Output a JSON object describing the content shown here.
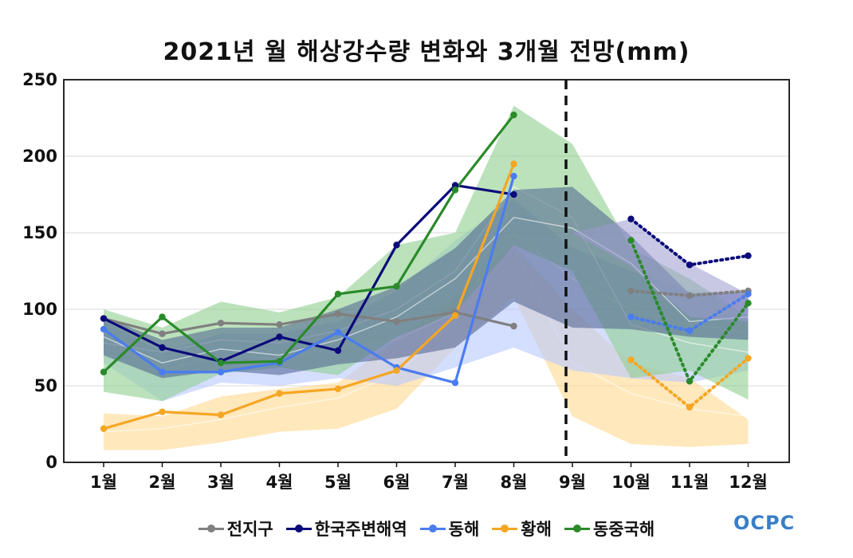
{
  "chart_data": {
    "type": "line",
    "title": "2021년 월 해상강수량 변화와 3개월 전망(mm)",
    "xlabel": "",
    "ylabel": "",
    "categories": [
      "1월",
      "2월",
      "3월",
      "4월",
      "5월",
      "6월",
      "7월",
      "8월",
      "9월",
      "10월",
      "11월",
      "12월"
    ],
    "ylim": [
      0,
      250
    ],
    "yticks": [
      0,
      50,
      100,
      150,
      200,
      250
    ],
    "grid": true,
    "legend_position": "bottom",
    "divider_after_category": "9월",
    "series": [
      {
        "name": "전지구",
        "color": "#808080",
        "observed": [
          94,
          84,
          91,
          90,
          97,
          92,
          98,
          89,
          null,
          null,
          null,
          null
        ],
        "forecast": [
          null,
          null,
          null,
          null,
          null,
          null,
          null,
          null,
          null,
          112,
          109,
          112
        ],
        "band_low": [
          70,
          55,
          60,
          57,
          64,
          68,
          75,
          105,
          88,
          87,
          82,
          80
        ],
        "band_mid": [
          82,
          65,
          74,
          70,
          80,
          95,
          120,
          160,
          153,
          130,
          92,
          95
        ],
        "band_high": [
          95,
          80,
          88,
          88,
          100,
          115,
          140,
          178,
          180,
          148,
          110,
          112
        ],
        "band_color": "#4a5f8c"
      },
      {
        "name": "한국주변해역",
        "color": "#0a0a7a",
        "observed": [
          94,
          75,
          66,
          82,
          73,
          142,
          181,
          175,
          null,
          null,
          null,
          null
        ],
        "forecast": [
          null,
          null,
          null,
          null,
          null,
          null,
          null,
          null,
          null,
          159,
          129,
          135
        ],
        "band_low": null,
        "band_mid": null,
        "band_high": null,
        "band_color": "#9a9ad0"
      },
      {
        "name": "동해",
        "color": "#4a7cf0",
        "observed": [
          87,
          59,
          59,
          65,
          85,
          62,
          52,
          187,
          null,
          null,
          null,
          null
        ],
        "forecast": [
          null,
          null,
          null,
          null,
          null,
          null,
          null,
          null,
          null,
          95,
          86,
          110
        ],
        "band_low": [
          65,
          40,
          52,
          50,
          55,
          50,
          62,
          75,
          60,
          55,
          52,
          60
        ],
        "band_mid": [
          78,
          60,
          70,
          68,
          75,
          80,
          98,
          150,
          120,
          100,
          90,
          85
        ],
        "band_high": [
          92,
          72,
          84,
          84,
          92,
          112,
          145,
          172,
          140,
          125,
          112,
          110
        ],
        "band_color": "#b8c8ff"
      },
      {
        "name": "황해",
        "color": "#f5a623",
        "observed": [
          22,
          33,
          31,
          45,
          48,
          60,
          96,
          195,
          null,
          null,
          null,
          null
        ],
        "forecast": [
          null,
          null,
          null,
          null,
          null,
          null,
          null,
          null,
          null,
          67,
          36,
          68
        ],
        "band_low": [
          8,
          8,
          13,
          20,
          22,
          35,
          75,
          108,
          30,
          12,
          10,
          12
        ],
        "band_mid": [
          20,
          22,
          28,
          36,
          42,
          58,
          92,
          140,
          65,
          45,
          35,
          30
        ],
        "band_high": [
          32,
          30,
          43,
          48,
          52,
          80,
          108,
          142,
          100,
          65,
          55,
          28
        ],
        "band_color": "#ffd98f"
      },
      {
        "name": "동중국해",
        "color": "#2a8a2a",
        "observed": [
          59,
          95,
          65,
          66,
          110,
          115,
          178,
          227,
          null,
          null,
          null,
          null
        ],
        "forecast": [
          null,
          null,
          null,
          null,
          null,
          null,
          null,
          null,
          null,
          145,
          53,
          104
        ],
        "band_low": [
          46,
          40,
          58,
          62,
          57,
          82,
          98,
          142,
          125,
          55,
          60,
          41
        ],
        "band_mid": [
          78,
          72,
          80,
          78,
          86,
          100,
          125,
          180,
          160,
          90,
          78,
          72
        ],
        "band_high": [
          100,
          88,
          105,
          98,
          108,
          142,
          150,
          233,
          208,
          140,
          120,
          95
        ],
        "band_color": "#8fcf8f"
      }
    ]
  },
  "logo_text": "OCPC"
}
